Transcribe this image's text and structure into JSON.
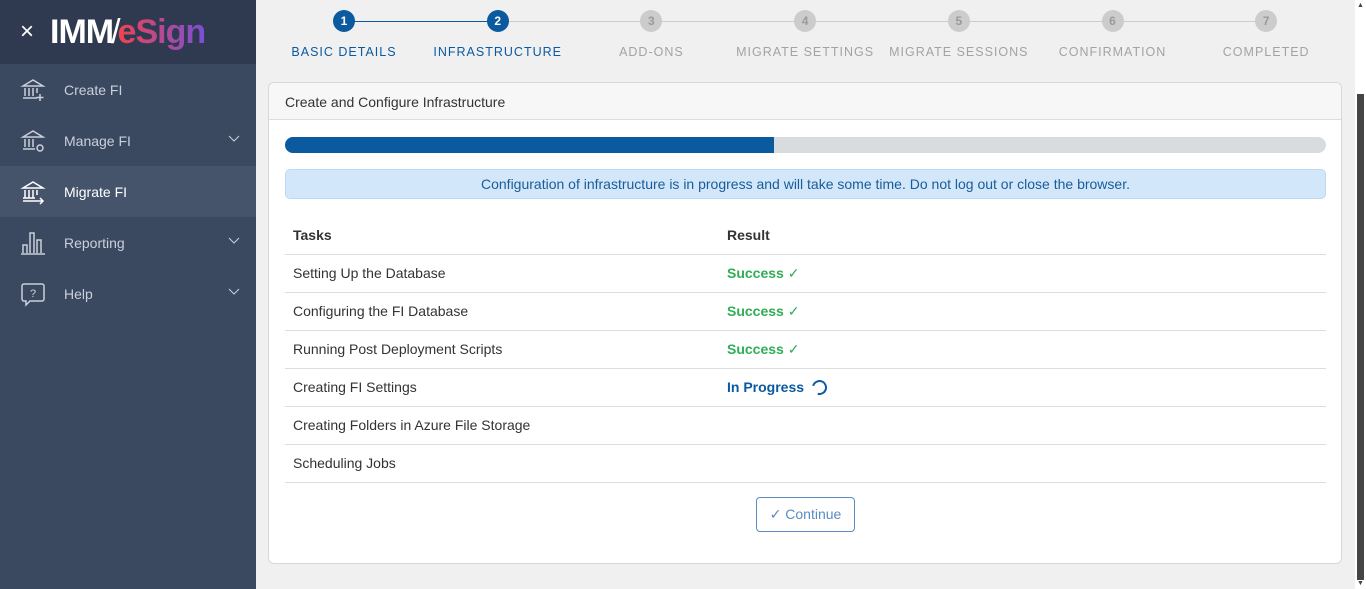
{
  "brand": {
    "close_icon": "×",
    "logo_imm": "IMM",
    "logo_slash": "/",
    "logo_esign": "eSign"
  },
  "sidebar": {
    "items": [
      {
        "label": "Create FI",
        "icon": "bank-plus-icon",
        "expandable": false,
        "active": false
      },
      {
        "label": "Manage FI",
        "icon": "bank-gear-icon",
        "expandable": true,
        "active": false
      },
      {
        "label": "Migrate FI",
        "icon": "bank-arrow-icon",
        "expandable": false,
        "active": true
      },
      {
        "label": "Reporting",
        "icon": "bar-chart-icon",
        "expandable": true,
        "active": false
      },
      {
        "label": "Help",
        "icon": "help-bubble-icon",
        "expandable": true,
        "active": false
      }
    ]
  },
  "stepper": {
    "steps": [
      {
        "num": "1",
        "label": "BASIC DETAILS",
        "done": true
      },
      {
        "num": "2",
        "label": "INFRASTRUCTURE",
        "done": true
      },
      {
        "num": "3",
        "label": "ADD-ONS",
        "done": false
      },
      {
        "num": "4",
        "label": "MIGRATE SETTINGS",
        "done": false
      },
      {
        "num": "5",
        "label": "MIGRATE SESSIONS",
        "done": false
      },
      {
        "num": "6",
        "label": "CONFIRMATION",
        "done": false
      },
      {
        "num": "7",
        "label": "COMPLETED",
        "done": false
      }
    ]
  },
  "card": {
    "title": "Create and Configure Infrastructure",
    "progress_percent": 47,
    "alert": "Configuration of infrastructure is in progress and will take some time. Do not log out or close the browser.",
    "table": {
      "headers": [
        "Tasks",
        "Result"
      ],
      "rows": [
        {
          "task": "Setting Up the Database",
          "result": "Success",
          "status": "success"
        },
        {
          "task": "Configuring the FI Database",
          "result": "Success",
          "status": "success"
        },
        {
          "task": "Running Post Deployment Scripts",
          "result": "Success",
          "status": "success"
        },
        {
          "task": "Creating FI Settings",
          "result": "In Progress",
          "status": "progress"
        },
        {
          "task": "Creating Folders in Azure File Storage",
          "result": "",
          "status": "pending"
        },
        {
          "task": "Scheduling Jobs",
          "result": "",
          "status": "pending"
        }
      ]
    },
    "continue_label": "Continue",
    "check_glyph": "✓"
  },
  "colors": {
    "primary": "#0b5aa0",
    "success": "#2fae55",
    "sidebar": "#3b4960"
  }
}
